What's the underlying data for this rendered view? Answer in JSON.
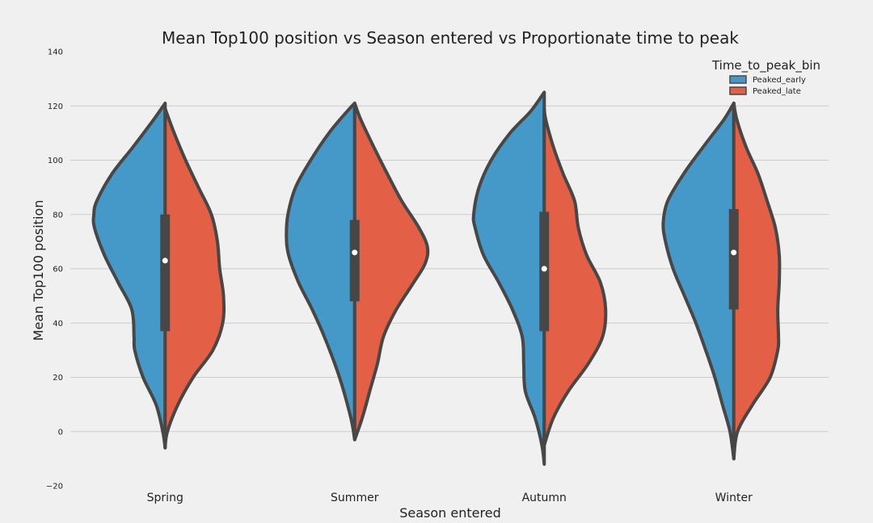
{
  "chart_data": {
    "type": "violin",
    "title": "Mean Top100 position vs Season entered vs Proportionate time to peak",
    "xlabel": "Season entered",
    "ylabel": "Mean Top100 position",
    "categories": [
      "Spring",
      "Summer",
      "Autumn",
      "Winter"
    ],
    "ylim": [
      -20,
      140
    ],
    "yticks": [
      -20,
      0,
      20,
      40,
      60,
      80,
      100,
      120,
      140
    ],
    "ytick_labels": [
      "−20",
      "0",
      "20",
      "40",
      "60",
      "80",
      "100",
      "120",
      "140"
    ],
    "grid": true,
    "legend": {
      "title": "Time_to_peak_bin",
      "placement": "top-right",
      "entries": [
        {
          "name": "Peaked_early",
          "color": "#4599c9"
        },
        {
          "name": "Peaked_late",
          "color": "#e35f46"
        }
      ]
    },
    "series": [
      {
        "name": "Peaked_early",
        "color": "#4599c9",
        "violins": [
          {
            "category": "Spring",
            "profile": [
              [
                -6,
                0.0
              ],
              [
                0,
                0.03
              ],
              [
                10,
                0.12
              ],
              [
                20,
                0.29
              ],
              [
                30,
                0.4
              ],
              [
                35,
                0.41
              ],
              [
                45,
                0.44
              ],
              [
                55,
                0.62
              ],
              [
                65,
                0.8
              ],
              [
                75,
                0.93
              ],
              [
                80,
                0.94
              ],
              [
                85,
                0.9
              ],
              [
                95,
                0.7
              ],
              [
                105,
                0.42
              ],
              [
                115,
                0.15
              ],
              [
                121,
                0.0
              ]
            ]
          },
          {
            "category": "Summer",
            "profile": [
              [
                -3,
                0.0
              ],
              [
                5,
                0.05
              ],
              [
                20,
                0.2
              ],
              [
                35,
                0.4
              ],
              [
                45,
                0.56
              ],
              [
                55,
                0.74
              ],
              [
                65,
                0.87
              ],
              [
                72,
                0.9
              ],
              [
                80,
                0.88
              ],
              [
                90,
                0.78
              ],
              [
                100,
                0.58
              ],
              [
                110,
                0.34
              ],
              [
                118,
                0.1
              ],
              [
                121,
                0.0
              ]
            ]
          },
          {
            "category": "Autumn",
            "profile": [
              [
                -12,
                0.0
              ],
              [
                -5,
                0.03
              ],
              [
                5,
                0.12
              ],
              [
                15,
                0.25
              ],
              [
                25,
                0.27
              ],
              [
                35,
                0.29
              ],
              [
                45,
                0.42
              ],
              [
                55,
                0.6
              ],
              [
                65,
                0.8
              ],
              [
                75,
                0.91
              ],
              [
                80,
                0.93
              ],
              [
                90,
                0.86
              ],
              [
                100,
                0.7
              ],
              [
                110,
                0.45
              ],
              [
                118,
                0.18
              ],
              [
                125,
                0.0
              ]
            ]
          },
          {
            "category": "Winter",
            "profile": [
              [
                -10,
                0.0
              ],
              [
                0,
                0.05
              ],
              [
                10,
                0.15
              ],
              [
                20,
                0.25
              ],
              [
                30,
                0.37
              ],
              [
                40,
                0.5
              ],
              [
                50,
                0.65
              ],
              [
                60,
                0.8
              ],
              [
                70,
                0.9
              ],
              [
                77,
                0.93
              ],
              [
                85,
                0.87
              ],
              [
                95,
                0.66
              ],
              [
                105,
                0.4
              ],
              [
                115,
                0.13
              ],
              [
                121,
                0.0
              ]
            ]
          }
        ]
      },
      {
        "name": "Peaked_late",
        "color": "#e35f46",
        "violins": [
          {
            "category": "Spring",
            "profile": [
              [
                -6,
                0.0
              ],
              [
                0,
                0.03
              ],
              [
                10,
                0.17
              ],
              [
                20,
                0.37
              ],
              [
                30,
                0.63
              ],
              [
                40,
                0.76
              ],
              [
                50,
                0.77
              ],
              [
                60,
                0.72
              ],
              [
                70,
                0.69
              ],
              [
                80,
                0.61
              ],
              [
                90,
                0.44
              ],
              [
                100,
                0.27
              ],
              [
                110,
                0.12
              ],
              [
                119,
                0.0
              ]
            ]
          },
          {
            "category": "Summer",
            "profile": [
              [
                -3,
                0.0
              ],
              [
                5,
                0.1
              ],
              [
                15,
                0.2
              ],
              [
                25,
                0.3
              ],
              [
                35,
                0.38
              ],
              [
                45,
                0.55
              ],
              [
                55,
                0.78
              ],
              [
                62,
                0.93
              ],
              [
                68,
                0.96
              ],
              [
                75,
                0.85
              ],
              [
                85,
                0.62
              ],
              [
                95,
                0.43
              ],
              [
                105,
                0.25
              ],
              [
                115,
                0.08
              ],
              [
                121,
                0.0
              ]
            ]
          },
          {
            "category": "Autumn",
            "profile": [
              [
                -5,
                0.0
              ],
              [
                5,
                0.12
              ],
              [
                15,
                0.32
              ],
              [
                25,
                0.58
              ],
              [
                35,
                0.77
              ],
              [
                45,
                0.81
              ],
              [
                55,
                0.74
              ],
              [
                65,
                0.56
              ],
              [
                75,
                0.45
              ],
              [
                85,
                0.4
              ],
              [
                95,
                0.25
              ],
              [
                105,
                0.12
              ],
              [
                115,
                0.02
              ],
              [
                119,
                0.0
              ]
            ]
          },
          {
            "category": "Winter",
            "profile": [
              [
                -10,
                0.0
              ],
              [
                0,
                0.05
              ],
              [
                10,
                0.25
              ],
              [
                20,
                0.48
              ],
              [
                30,
                0.58
              ],
              [
                35,
                0.59
              ],
              [
                45,
                0.58
              ],
              [
                55,
                0.6
              ],
              [
                65,
                0.6
              ],
              [
                75,
                0.55
              ],
              [
                85,
                0.44
              ],
              [
                95,
                0.32
              ],
              [
                105,
                0.16
              ],
              [
                115,
                0.04
              ],
              [
                121,
                0.0
              ]
            ]
          }
        ]
      }
    ],
    "box": [
      {
        "category": "Spring",
        "q1": 37,
        "median": 63,
        "q3": 80,
        "min": -6,
        "max": 121
      },
      {
        "category": "Summer",
        "q1": 48,
        "median": 66,
        "q3": 78,
        "min": -3,
        "max": 121
      },
      {
        "category": "Autumn",
        "q1": 37,
        "median": 60,
        "q3": 81,
        "min": -5,
        "max": 119
      },
      {
        "category": "Winter",
        "q1": 45,
        "median": 66,
        "q3": 82,
        "min": -10,
        "max": 121
      }
    ]
  }
}
